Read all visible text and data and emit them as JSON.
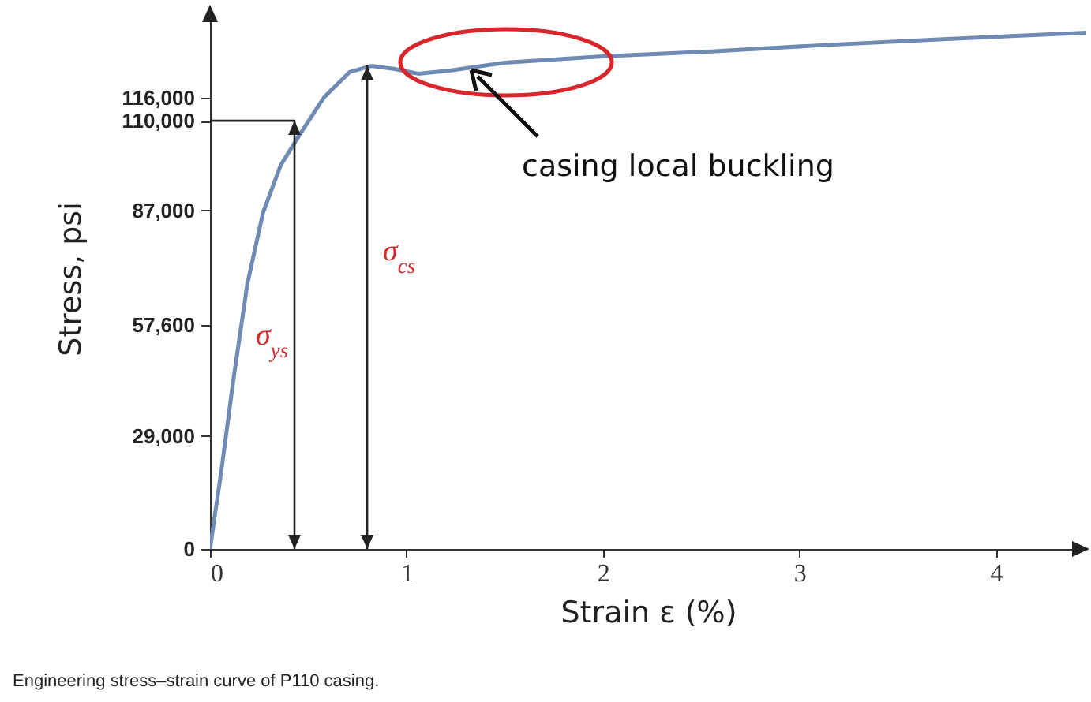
{
  "chart_data": {
    "type": "line",
    "xlabel": "Strain ε (%)",
    "ylabel": "Stress, psi",
    "series": [
      {
        "color": "#6f8ab3",
        "x": [
          0,
          0.056,
          0.12,
          0.19,
          0.27,
          0.36,
          0.46,
          0.58,
          0.71,
          0.82,
          0.94,
          1.06,
          1.22,
          1.5,
          1.98,
          2.55,
          3.11,
          3.75,
          4.46
        ],
        "values": [
          0,
          19500,
          43800,
          68100,
          86400,
          98600,
          106700,
          116000,
          122500,
          124100,
          123300,
          122100,
          122900,
          124900,
          126500,
          127800,
          129400,
          131000,
          132600
        ]
      },
      {
        "name": "σ$_{ys}$",
        "color": "#222222",
        "x": [
          0,
          0.43,
          0.43
        ],
        "values": [
          110000,
          110000,
          0
        ]
      },
      {
        "name": "σ$_{cs}$",
        "color": "#222222",
        "x": [
          0.8,
          0.8
        ],
        "values": [
          124100,
          0
        ]
      }
    ],
    "xlim": [
      0,
      4.46
    ],
    "xticks": [
      0,
      1,
      2,
      3,
      4
    ],
    "ylim": [
      0,
      139000
    ],
    "yticks": [
      0,
      {
        "value": 29000,
        "label": "29,000"
      },
      {
        "value": 57600,
        "label": "57,600"
      },
      {
        "value": 87000,
        "label": "87,000"
      },
      {
        "value": 110000,
        "label": "110,000"
      },
      {
        "value": 116000,
        "label": "116,000"
      }
    ],
    "annotations": [
      {
        "text": "casing local buckling",
        "x": 1.33,
        "y": 123000
      },
      "Engineering stress–strain curve of P110 casing."
    ]
  }
}
